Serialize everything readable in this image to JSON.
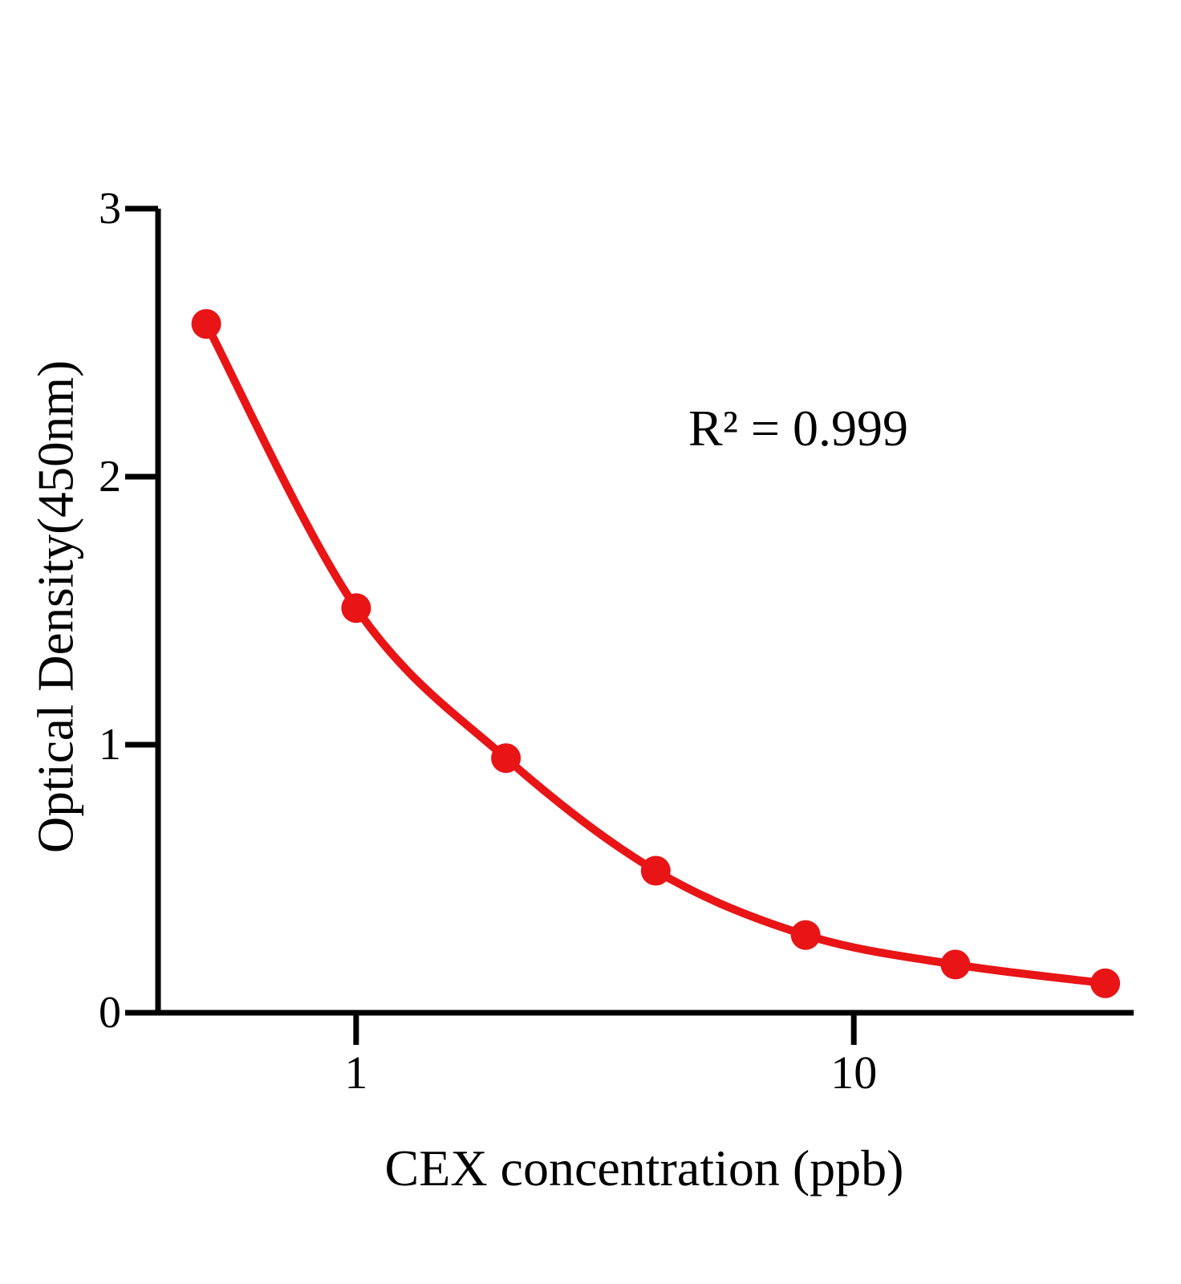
{
  "chart_data": {
    "type": "scatter",
    "title": "",
    "xlabel": "CEX concentration (ppb)",
    "ylabel": "Optical Density(450nm)",
    "annotation": "R² = 0.999",
    "x_scale": "log",
    "x": [
      0.5,
      1,
      2,
      4,
      8,
      16,
      32
    ],
    "y": [
      2.57,
      1.51,
      0.95,
      0.53,
      0.29,
      0.18,
      0.11
    ],
    "x_ticks": [
      1,
      10
    ],
    "y_ticks": [
      0,
      1,
      2,
      3
    ],
    "xlim": [
      0.4,
      36.5
    ],
    "ylim": [
      0,
      3
    ],
    "grid": false,
    "legend": "none",
    "line_color": "#e81416",
    "marker_color": "#e81416",
    "axis_color": "#000000",
    "background_color": "#ffffff"
  }
}
